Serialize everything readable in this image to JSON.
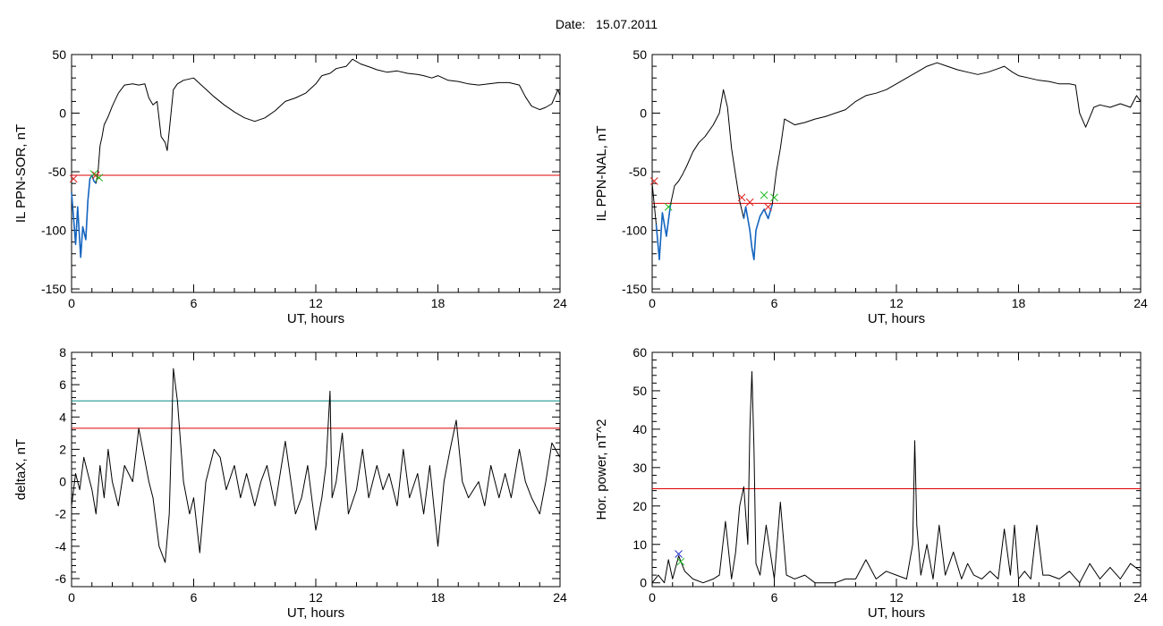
{
  "page": {
    "title_prefix": "Date:",
    "date": "15.07.2011"
  },
  "colors": {
    "trace": "#000000",
    "threshold_red": "#dd0000",
    "threshold_teal": "#0a8a8a",
    "below_threshold": "#1565c0",
    "marker_green": "#22bb22",
    "marker_red": "#dd2222",
    "marker_blue": "#2233cc"
  },
  "chart_data": [
    {
      "id": "il-sor",
      "type": "line",
      "xlabel": "UT, hours",
      "ylabel": "IL PPN-SOR, nT",
      "xlim": [
        0,
        24
      ],
      "ylim": [
        -153,
        50
      ],
      "xticks": [
        0,
        6,
        12,
        18,
        24
      ],
      "yticks": [
        -150,
        -100,
        -50,
        0,
        50
      ],
      "threshold": -53,
      "x": [
        0,
        0.1,
        0.2,
        0.3,
        0.45,
        0.55,
        0.7,
        0.8,
        0.9,
        1.0,
        1.1,
        1.2,
        1.3,
        1.4,
        1.5,
        1.6,
        1.8,
        2.0,
        2.3,
        2.6,
        3.0,
        3.3,
        3.6,
        3.8,
        4.0,
        4.2,
        4.4,
        4.6,
        4.7,
        4.8,
        5.0,
        5.2,
        5.5,
        6.0,
        6.5,
        7.0,
        7.5,
        8.0,
        8.5,
        9.0,
        9.5,
        10.0,
        10.5,
        11.0,
        11.5,
        12.0,
        12.3,
        12.7,
        13.0,
        13.5,
        13.8,
        14.2,
        14.7,
        15.0,
        15.5,
        16.0,
        16.5,
        17.0,
        17.3,
        17.7,
        18.0,
        18.5,
        19.0,
        19.5,
        20.0,
        20.5,
        21.0,
        21.5,
        22.0,
        22.3,
        22.6,
        23.0,
        23.3,
        23.6,
        23.9,
        24.0
      ],
      "values": [
        -68,
        -90,
        -112,
        -80,
        -123,
        -97,
        -108,
        -75,
        -56,
        -53,
        -58,
        -60,
        -50,
        -28,
        -20,
        -10,
        -3,
        6,
        17,
        24,
        25,
        24,
        25,
        13,
        7,
        10,
        -20,
        -25,
        -32,
        -15,
        20,
        25,
        28,
        30,
        22,
        14,
        7,
        1,
        -4,
        -7,
        -4,
        2,
        10,
        13,
        17,
        25,
        32,
        34,
        38,
        40,
        46,
        42,
        39,
        37,
        35,
        36,
        34,
        33,
        32,
        30,
        32,
        28,
        27,
        25,
        24,
        25,
        26,
        26,
        24,
        14,
        6,
        3,
        5,
        8,
        20,
        15
      ],
      "series": [
        {
          "name": "below-threshold",
          "color": "#1565c0",
          "x": [
            0,
            0.1,
            0.2,
            0.3,
            0.45,
            0.55,
            0.7,
            0.8,
            0.9,
            1.0,
            1.1,
            1.2
          ],
          "values": [
            -68,
            -90,
            -112,
            -80,
            -123,
            -97,
            -108,
            -75,
            -56,
            -53,
            -58,
            -60
          ]
        }
      ],
      "markers": [
        {
          "kind": "x",
          "color": "#dd2222",
          "x": 0.1,
          "y": -56
        },
        {
          "kind": "x",
          "color": "#22bb22",
          "x": 1.1,
          "y": -52
        },
        {
          "kind": "x",
          "color": "#dd2222",
          "x": 1.2,
          "y": -53
        },
        {
          "kind": "x",
          "color": "#22bb22",
          "x": 1.35,
          "y": -55
        }
      ]
    },
    {
      "id": "il-nal",
      "type": "line",
      "xlabel": "UT, hours",
      "ylabel": "IL PPN-NAL, nT",
      "xlim": [
        0,
        24
      ],
      "ylim": [
        -153,
        50
      ],
      "xticks": [
        0,
        6,
        12,
        18,
        24
      ],
      "yticks": [
        -150,
        -100,
        -50,
        0,
        50
      ],
      "threshold": -77,
      "x": [
        0,
        0.2,
        0.35,
        0.5,
        0.7,
        0.9,
        1.1,
        1.3,
        1.5,
        1.7,
        2.0,
        2.3,
        2.6,
        3.0,
        3.3,
        3.5,
        3.7,
        3.9,
        4.1,
        4.3,
        4.5,
        4.6,
        4.8,
        4.9,
        5.0,
        5.1,
        5.3,
        5.5,
        5.7,
        5.9,
        6.1,
        6.3,
        6.5,
        7.0,
        7.5,
        8.0,
        8.5,
        9.0,
        9.5,
        10.0,
        10.5,
        11.0,
        11.5,
        12.0,
        12.5,
        13.0,
        13.5,
        14.0,
        14.5,
        15.0,
        15.5,
        16.0,
        16.5,
        17.0,
        17.3,
        17.7,
        18.0,
        18.5,
        19.0,
        19.5,
        20.0,
        20.5,
        20.8,
        21.0,
        21.3,
        21.7,
        22.0,
        22.5,
        23.0,
        23.5,
        23.8,
        24.0
      ],
      "values": [
        -60,
        -95,
        -125,
        -85,
        -105,
        -78,
        -62,
        -58,
        -52,
        -45,
        -33,
        -25,
        -20,
        -10,
        0,
        20,
        5,
        -30,
        -53,
        -75,
        -90,
        -80,
        -100,
        -115,
        -125,
        -100,
        -88,
        -82,
        -90,
        -78,
        -50,
        -30,
        -5,
        -10,
        -8,
        -5,
        -3,
        0,
        3,
        10,
        15,
        17,
        20,
        25,
        30,
        35,
        40,
        43,
        40,
        37,
        35,
        33,
        35,
        38,
        40,
        35,
        32,
        30,
        28,
        27,
        25,
        25,
        24,
        0,
        -12,
        5,
        7,
        5,
        8,
        5,
        15,
        10
      ],
      "series": [
        {
          "name": "below-threshold",
          "color": "#1565c0",
          "x": [
            0.2,
            0.35,
            0.5,
            0.7,
            0.9
          ],
          "values": [
            -95,
            -125,
            -85,
            -105,
            -78
          ]
        },
        {
          "name": "below-threshold-2",
          "color": "#1565c0",
          "x": [
            4.5,
            4.6,
            4.8,
            4.9,
            5.0,
            5.1,
            5.3,
            5.5,
            5.7,
            5.9
          ],
          "values": [
            -90,
            -80,
            -100,
            -115,
            -125,
            -100,
            -88,
            -82,
            -90,
            -78
          ]
        }
      ],
      "markers": [
        {
          "kind": "x",
          "color": "#dd2222",
          "x": 0.1,
          "y": -58
        },
        {
          "kind": "x",
          "color": "#22bb22",
          "x": 0.8,
          "y": -80
        },
        {
          "kind": "x",
          "color": "#dd2222",
          "x": 4.4,
          "y": -72
        },
        {
          "kind": "x",
          "color": "#dd2222",
          "x": 4.8,
          "y": -76
        },
        {
          "kind": "x",
          "color": "#22bb22",
          "x": 5.5,
          "y": -70
        },
        {
          "kind": "x",
          "color": "#dd2222",
          "x": 5.7,
          "y": -80
        },
        {
          "kind": "x",
          "color": "#22bb22",
          "x": 6.0,
          "y": -72
        }
      ]
    },
    {
      "id": "deltax",
      "type": "line",
      "xlabel": "UT, hours",
      "ylabel": "deltaX, nT",
      "xlim": [
        0,
        24
      ],
      "ylim": [
        -6.5,
        8
      ],
      "xticks": [
        0,
        6,
        12,
        18,
        24
      ],
      "yticks": [
        -6,
        -4,
        -2,
        0,
        2,
        4,
        6,
        8
      ],
      "threshold_teal": 5.0,
      "threshold": 3.3,
      "x": [
        0,
        0.2,
        0.4,
        0.6,
        0.8,
        1.0,
        1.2,
        1.4,
        1.6,
        1.8,
        2.0,
        2.3,
        2.6,
        3.0,
        3.3,
        3.5,
        3.8,
        4.0,
        4.3,
        4.6,
        4.8,
        5.0,
        5.2,
        5.5,
        5.8,
        6.0,
        6.3,
        6.6,
        7.0,
        7.3,
        7.6,
        8.0,
        8.3,
        8.6,
        9.0,
        9.3,
        9.6,
        10.0,
        10.5,
        11.0,
        11.3,
        11.6,
        12.0,
        12.3,
        12.5,
        12.7,
        12.8,
        13.0,
        13.3,
        13.6,
        14.0,
        14.3,
        14.6,
        15.0,
        15.3,
        15.6,
        16.0,
        16.3,
        16.6,
        17.0,
        17.3,
        17.6,
        17.8,
        18.0,
        18.3,
        18.6,
        18.9,
        19.2,
        19.5,
        20.0,
        20.3,
        20.6,
        21.0,
        21.3,
        21.6,
        22.0,
        22.3,
        22.6,
        23.0,
        23.3,
        23.6,
        24.0
      ],
      "values": [
        -1.5,
        0.5,
        -0.5,
        1.5,
        0.5,
        -0.5,
        -2,
        1,
        -1,
        2,
        0,
        -1.5,
        1,
        0,
        3.3,
        2,
        0,
        -1,
        -4,
        -5,
        -2,
        7,
        5,
        0,
        -2,
        -1,
        -4.4,
        0,
        2,
        1.5,
        -0.5,
        1,
        -1,
        0.5,
        -1.5,
        0,
        1,
        -1.5,
        2.5,
        -2,
        -1,
        1,
        -3,
        -1,
        1,
        5.6,
        -1,
        0,
        3,
        -2,
        -0.5,
        2,
        -1,
        1,
        -0.5,
        0.5,
        -1.5,
        2,
        -1,
        0.5,
        -2,
        1,
        -1.5,
        -4,
        0,
        2,
        3.8,
        0,
        -1,
        0,
        -1.5,
        1,
        -1,
        0.5,
        -1,
        2,
        0,
        -1,
        -2,
        0,
        2.4,
        1.5
      ],
      "series": []
    },
    {
      "id": "hor-power",
      "type": "line",
      "xlabel": "UT, hours",
      "ylabel": "Hor. power, nT^2",
      "xlim": [
        0,
        24
      ],
      "ylim": [
        -1,
        60
      ],
      "xticks": [
        0,
        6,
        12,
        18,
        24
      ],
      "yticks": [
        0,
        10,
        20,
        30,
        40,
        50,
        60
      ],
      "threshold": 24.5,
      "x": [
        0,
        0.3,
        0.6,
        0.8,
        1.0,
        1.3,
        1.6,
        2.0,
        2.5,
        3.0,
        3.3,
        3.6,
        3.9,
        4.1,
        4.3,
        4.5,
        4.7,
        4.8,
        4.9,
        5.0,
        5.1,
        5.3,
        5.6,
        6.0,
        6.3,
        6.6,
        7.0,
        7.5,
        8.0,
        9.0,
        9.5,
        10.0,
        10.5,
        11.0,
        11.5,
        12.0,
        12.5,
        12.8,
        12.9,
        13.0,
        13.2,
        13.5,
        13.8,
        14.1,
        14.4,
        14.8,
        15.2,
        15.5,
        15.8,
        16.2,
        16.6,
        17.0,
        17.3,
        17.6,
        17.8,
        18.0,
        18.3,
        18.6,
        18.9,
        19.2,
        19.5,
        20.0,
        20.5,
        21.0,
        21.5,
        22.0,
        22.5,
        23.0,
        23.5,
        24.0
      ],
      "values": [
        0,
        2,
        0,
        6,
        1,
        7,
        3,
        1,
        0,
        1,
        2,
        16,
        1,
        8,
        20,
        25,
        10,
        40,
        55,
        35,
        5,
        2,
        15,
        1,
        21,
        2,
        1,
        2,
        0,
        0,
        1,
        1,
        6,
        1,
        3,
        2,
        1,
        10,
        37,
        15,
        2,
        10,
        1,
        15,
        2,
        8,
        1,
        5,
        2,
        1,
        3,
        1,
        14,
        2,
        15,
        1,
        3,
        1,
        15,
        2,
        2,
        1,
        3,
        0,
        5,
        1,
        4,
        1,
        5,
        3
      ],
      "series": [],
      "markers": [
        {
          "kind": "x",
          "color": "#2233cc",
          "x": 1.3,
          "y": 7.5
        },
        {
          "kind": "x",
          "color": "#22bb22",
          "x": 1.4,
          "y": 5.5
        }
      ]
    }
  ]
}
